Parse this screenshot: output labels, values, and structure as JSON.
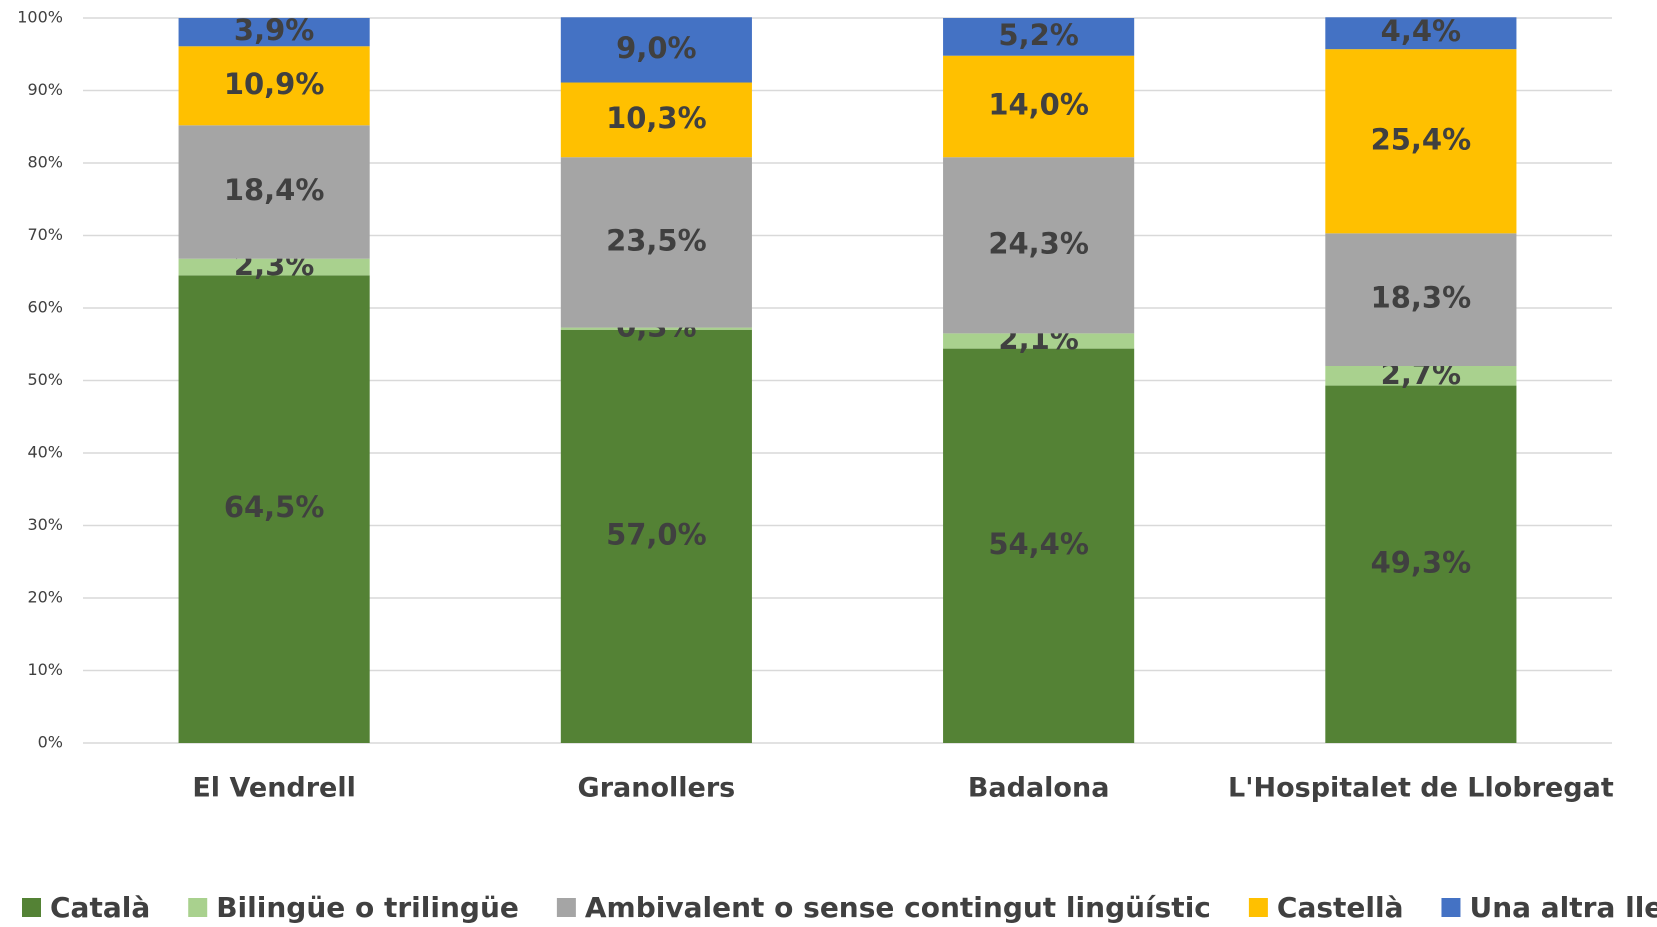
{
  "chart_data": {
    "type": "stacked_bar",
    "categories": [
      "El Vendrell",
      "Granollers",
      "Badalona",
      "L'Hospitalet de Llobregat"
    ],
    "series": [
      {
        "name": "Català",
        "color": "#548235",
        "values": [
          64.5,
          57.0,
          54.4,
          49.3
        ],
        "value_labels": [
          "64,5%",
          "57,0%",
          "54,4%",
          "49,3%"
        ]
      },
      {
        "name": "Bilingüe o trilingüe",
        "color": "#a9d18e",
        "values": [
          2.3,
          0.3,
          2.1,
          2.7
        ],
        "value_labels": [
          "2,3%",
          "0,3%",
          "2,1%",
          "2,7%"
        ]
      },
      {
        "name": "Ambivalent o sense contingut lingüístic",
        "color": "#a5a5a5",
        "values": [
          18.4,
          23.5,
          24.3,
          18.3
        ],
        "value_labels": [
          "18,4%",
          "23,5%",
          "24,3%",
          "18,3%"
        ]
      },
      {
        "name": "Castellà",
        "color": "#ffc000",
        "values": [
          10.9,
          10.3,
          14.0,
          25.4
        ],
        "value_labels": [
          "10,9%",
          "10,3%",
          "14,0%",
          "25,4%"
        ]
      },
      {
        "name": "Una altra llengua",
        "color": "#4472c4",
        "values": [
          3.9,
          9.0,
          5.2,
          4.4
        ],
        "value_labels": [
          "3,9%",
          "9,0%",
          "5,2%",
          "4,4%"
        ]
      }
    ],
    "ylim": [
      0,
      100
    ],
    "yticks": [
      {
        "value": 0,
        "label": "0%"
      },
      {
        "value": 10,
        "label": "10%"
      },
      {
        "value": 20,
        "label": "20%"
      },
      {
        "value": 30,
        "label": "30%"
      },
      {
        "value": 40,
        "label": "40%"
      },
      {
        "value": 50,
        "label": "50%"
      },
      {
        "value": 60,
        "label": "60%"
      },
      {
        "value": 70,
        "label": "70%"
      },
      {
        "value": 80,
        "label": "80%"
      },
      {
        "value": 90,
        "label": "90%"
      },
      {
        "value": 100,
        "label": "100%"
      }
    ],
    "grid": true,
    "legend": "bottom"
  }
}
